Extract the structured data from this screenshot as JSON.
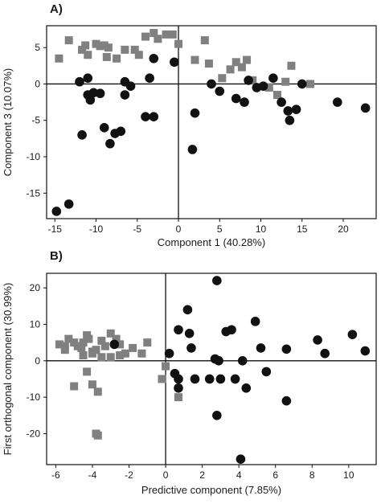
{
  "chart_data": [
    {
      "type": "scatter",
      "panel_label": "A)",
      "xlabel": "Component 1 (40.28%)",
      "ylabel": "Component 3 (10.07%)",
      "xlim": [
        -16,
        24
      ],
      "ylim": [
        -18.5,
        8
      ],
      "xticks": [
        -15,
        -10,
        -5,
        0,
        5,
        10,
        15,
        20
      ],
      "yticks": [
        5,
        0,
        -5,
        -10,
        -15
      ],
      "reference_lines": {
        "x": 0,
        "y": 0
      },
      "series": [
        {
          "marker": "square",
          "color": "#808080",
          "points": [
            [
              -14.5,
              3.5
            ],
            [
              -13.3,
              6.0
            ],
            [
              -11.7,
              4.7
            ],
            [
              -11.3,
              5.3
            ],
            [
              -11.0,
              4.0
            ],
            [
              -10.0,
              5.5
            ],
            [
              -9.5,
              5.2
            ],
            [
              -9.0,
              5.3
            ],
            [
              -8.5,
              5.0
            ],
            [
              -8.7,
              3.7
            ],
            [
              -7.5,
              3.5
            ],
            [
              -6.5,
              4.7
            ],
            [
              -5.3,
              4.7
            ],
            [
              -4.8,
              4.0
            ],
            [
              -4.0,
              6.5
            ],
            [
              -3.0,
              7.0
            ],
            [
              -2.5,
              6.2
            ],
            [
              -1.5,
              6.8
            ],
            [
              -0.7,
              6.8
            ],
            [
              0.0,
              5.5
            ],
            [
              3.2,
              6.0
            ],
            [
              2.0,
              3.3
            ],
            [
              3.7,
              2.8
            ],
            [
              5.3,
              0.8
            ],
            [
              6.3,
              2.0
            ],
            [
              7.0,
              3.0
            ],
            [
              7.7,
              2.3
            ],
            [
              8.3,
              3.3
            ],
            [
              9.0,
              0.5
            ],
            [
              11.0,
              -0.5
            ],
            [
              12.0,
              -1.5
            ],
            [
              13.0,
              0.3
            ],
            [
              13.7,
              2.5
            ],
            [
              16.0,
              0.0
            ]
          ]
        },
        {
          "marker": "circle",
          "color": "#111111",
          "points": [
            [
              -14.8,
              -17.5
            ],
            [
              -13.3,
              -16.5
            ],
            [
              -12.0,
              0.3
            ],
            [
              -11.0,
              0.8
            ],
            [
              -11.0,
              -1.5
            ],
            [
              -10.7,
              -2.2
            ],
            [
              -10.3,
              -1.2
            ],
            [
              -9.5,
              -1.3
            ],
            [
              -11.7,
              -7.0
            ],
            [
              -9.0,
              -6.0
            ],
            [
              -8.3,
              -8.2
            ],
            [
              -7.7,
              -6.8
            ],
            [
              -7.0,
              -6.5
            ],
            [
              -6.5,
              -1.5
            ],
            [
              -6.5,
              0.3
            ],
            [
              -5.8,
              -0.3
            ],
            [
              -4.0,
              -4.5
            ],
            [
              -3.0,
              -4.5
            ],
            [
              -3.0,
              3.5
            ],
            [
              -3.5,
              0.8
            ],
            [
              -0.5,
              3.0
            ],
            [
              1.7,
              -9.0
            ],
            [
              2.0,
              -4.0
            ],
            [
              5.0,
              -1.0
            ],
            [
              4.0,
              0.0
            ],
            [
              7.0,
              -2.0
            ],
            [
              8.0,
              -2.5
            ],
            [
              8.5,
              0.5
            ],
            [
              9.5,
              -0.5
            ],
            [
              10.3,
              -0.3
            ],
            [
              11.5,
              0.8
            ],
            [
              12.5,
              -2.5
            ],
            [
              13.3,
              -3.7
            ],
            [
              13.5,
              -5.0
            ],
            [
              14.3,
              -3.5
            ],
            [
              15.0,
              0.0
            ],
            [
              19.3,
              -2.5
            ],
            [
              22.7,
              -3.3
            ]
          ]
        }
      ]
    },
    {
      "type": "scatter",
      "panel_label": "B)",
      "xlabel": "Predictive component (7.85%)",
      "ylabel": "First orthogonal component (30.99%)",
      "xlim": [
        -6.5,
        11.5
      ],
      "ylim": [
        -28.5,
        24
      ],
      "xticks": [
        -6,
        -4,
        -2,
        0,
        2,
        4,
        6,
        8,
        10
      ],
      "yticks": [
        20,
        10,
        0,
        -10,
        -20
      ],
      "reference_lines": {
        "x": 0,
        "y": 0
      },
      "series": [
        {
          "marker": "square",
          "color": "#808080",
          "points": [
            [
              -5.8,
              4.5
            ],
            [
              -5.5,
              4.0
            ],
            [
              -5.3,
              6.0
            ],
            [
              -5.5,
              3.0
            ],
            [
              -5.0,
              5.0
            ],
            [
              -4.8,
              4.0
            ],
            [
              -4.6,
              3.5
            ],
            [
              -4.3,
              7.0
            ],
            [
              -4.2,
              6.0
            ],
            [
              -4.0,
              2.5
            ],
            [
              -4.5,
              5.0
            ],
            [
              -3.8,
              3.0
            ],
            [
              -3.5,
              5.5
            ],
            [
              -3.3,
              4.0
            ],
            [
              -3.0,
              7.5
            ],
            [
              -2.7,
              6.0
            ],
            [
              -2.5,
              4.5
            ],
            [
              -2.2,
              2.0
            ],
            [
              -1.8,
              3.5
            ],
            [
              -1.3,
              2.0
            ],
            [
              -1.0,
              5.0
            ],
            [
              -4.5,
              1.5
            ],
            [
              -4.0,
              2.0
            ],
            [
              -3.5,
              1.0
            ],
            [
              -2.5,
              1.5
            ],
            [
              -3.0,
              1.0
            ],
            [
              -4.3,
              -3.0
            ],
            [
              -5.0,
              -7.0
            ],
            [
              -4.0,
              -6.5
            ],
            [
              -3.7,
              -8.5
            ],
            [
              -3.8,
              -20.0
            ],
            [
              -3.7,
              -20.5
            ],
            [
              0.0,
              -1.5
            ],
            [
              -0.2,
              -5.0
            ],
            [
              0.7,
              -10.0
            ]
          ]
        },
        {
          "marker": "circle",
          "color": "#111111",
          "points": [
            [
              -2.8,
              4.5
            ],
            [
              0.2,
              2.0
            ],
            [
              0.7,
              8.5
            ],
            [
              0.5,
              -3.5
            ],
            [
              0.7,
              -5.0
            ],
            [
              0.7,
              -7.5
            ],
            [
              1.2,
              14.0
            ],
            [
              1.3,
              7.5
            ],
            [
              1.4,
              3.5
            ],
            [
              1.6,
              -5.0
            ],
            [
              2.4,
              -5.0
            ],
            [
              2.7,
              0.5
            ],
            [
              2.8,
              22.0
            ],
            [
              2.8,
              -15.0
            ],
            [
              2.9,
              0.0
            ],
            [
              3.0,
              -5.0
            ],
            [
              3.3,
              8.0
            ],
            [
              3.6,
              8.5
            ],
            [
              3.8,
              -5.0
            ],
            [
              4.1,
              -27.0
            ],
            [
              4.2,
              0.0
            ],
            [
              4.4,
              -7.5
            ],
            [
              4.9,
              10.8
            ],
            [
              5.2,
              3.5
            ],
            [
              5.5,
              -3.0
            ],
            [
              6.6,
              3.2
            ],
            [
              6.6,
              -11.0
            ],
            [
              8.3,
              5.7
            ],
            [
              8.7,
              2.0
            ],
            [
              10.2,
              7.2
            ],
            [
              10.9,
              2.7
            ]
          ]
        }
      ]
    }
  ]
}
